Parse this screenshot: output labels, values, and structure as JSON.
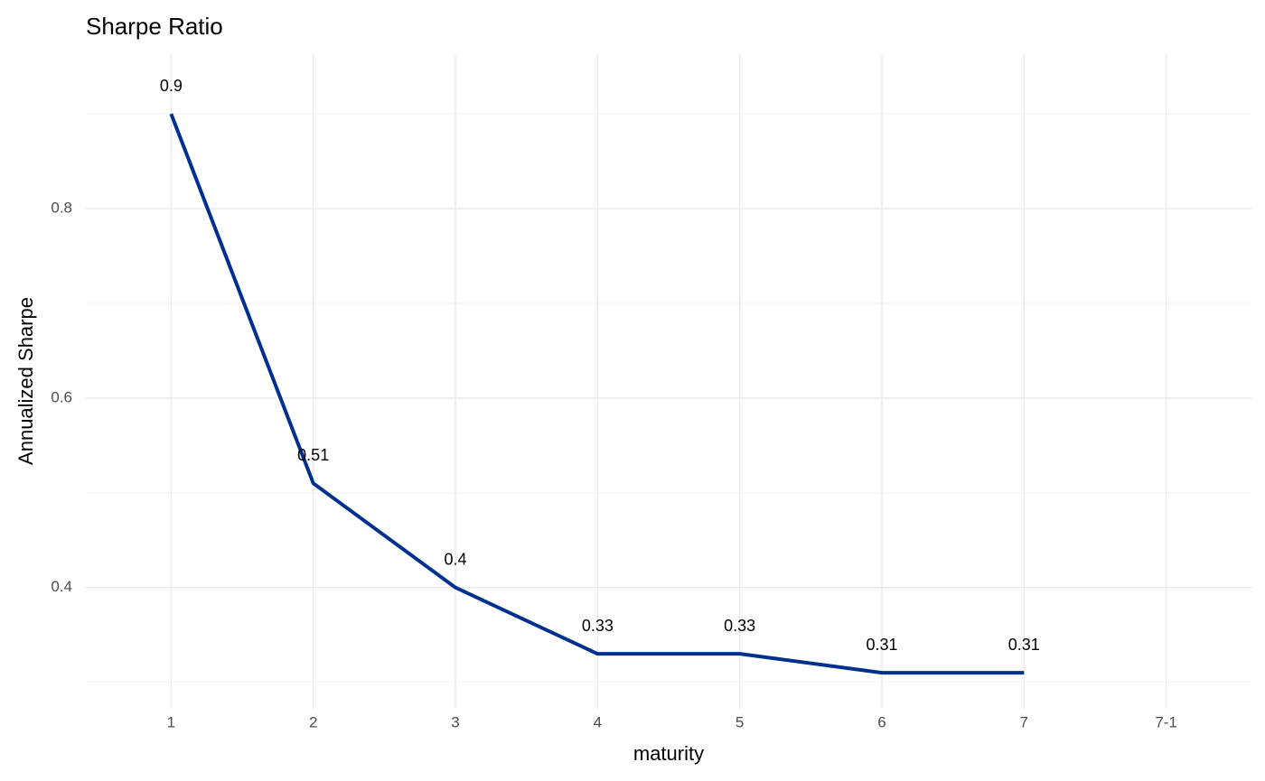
{
  "chart_data": {
    "type": "line",
    "title": "Sharpe Ratio",
    "x_label": "maturity",
    "y_label": "Annualized Sharpe",
    "categories": [
      "1",
      "2",
      "3",
      "4",
      "5",
      "6",
      "7",
      "7-1"
    ],
    "series": [
      {
        "color": "#00308f",
        "values": [
          0.9,
          0.51,
          0.4,
          0.33,
          0.33,
          0.31,
          0.31,
          null
        ]
      }
    ],
    "ylim": [
      0.272,
      0.963
    ],
    "yticks": [
      0.4,
      0.6,
      0.8
    ],
    "y_minor_ticks": [
      0.3,
      0.5,
      0.7,
      0.9
    ],
    "grid": true,
    "data_labels": true
  }
}
